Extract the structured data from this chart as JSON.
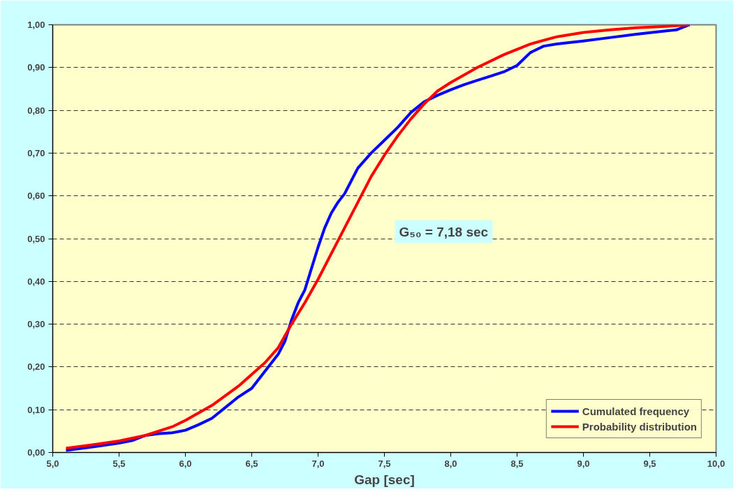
{
  "chart_data": {
    "type": "line",
    "xlabel": "Gap [sec]",
    "annotations": [
      "G₅₀ = 7,18 sec"
    ],
    "xlim": [
      5.0,
      10.0
    ],
    "ylim": [
      0.0,
      1.0
    ],
    "xticks": [
      {
        "value": 5.0,
        "label": "5,0"
      },
      {
        "value": 5.5,
        "label": "5,5"
      },
      {
        "value": 6.0,
        "label": "6,0"
      },
      {
        "value": 6.5,
        "label": "6,5"
      },
      {
        "value": 7.0,
        "label": "7,0"
      },
      {
        "value": 7.5,
        "label": "7,5"
      },
      {
        "value": 8.0,
        "label": "8,0"
      },
      {
        "value": 8.5,
        "label": "8,5"
      },
      {
        "value": 9.0,
        "label": "9,0"
      },
      {
        "value": 9.5,
        "label": "9,5"
      },
      {
        "value": 10.0,
        "label": "10,0"
      }
    ],
    "yticks": [
      {
        "value": 0.0,
        "label": "0,00"
      },
      {
        "value": 0.1,
        "label": "0,10"
      },
      {
        "value": 0.2,
        "label": "0,20"
      },
      {
        "value": 0.3,
        "label": "0,30"
      },
      {
        "value": 0.4,
        "label": "0,40"
      },
      {
        "value": 0.5,
        "label": "0,50"
      },
      {
        "value": 0.6,
        "label": "0,60"
      },
      {
        "value": 0.7,
        "label": "0,70"
      },
      {
        "value": 0.8,
        "label": "0,80"
      },
      {
        "value": 0.9,
        "label": "0,90"
      },
      {
        "value": 1.0,
        "label": "1,00"
      }
    ],
    "grid": "y",
    "legend": "bottom right",
    "marker": "none",
    "line_style": "solid",
    "series": [
      {
        "name": "Cumulated frequency",
        "color": "#0000ff",
        "x": [
          5.1,
          5.3,
          5.5,
          5.6,
          5.7,
          5.8,
          5.9,
          6.0,
          6.1,
          6.2,
          6.3,
          6.4,
          6.5,
          6.6,
          6.7,
          6.75,
          6.8,
          6.85,
          6.9,
          6.95,
          7.0,
          7.05,
          7.1,
          7.15,
          7.2,
          7.25,
          7.3,
          7.4,
          7.5,
          7.6,
          7.7,
          7.8,
          7.9,
          8.0,
          8.1,
          8.2,
          8.3,
          8.4,
          8.5,
          8.6,
          8.7,
          8.8,
          9.0,
          9.2,
          9.4,
          9.6,
          9.7,
          9.8
        ],
        "values": [
          0.005,
          0.013,
          0.022,
          0.028,
          0.04,
          0.044,
          0.046,
          0.052,
          0.065,
          0.08,
          0.105,
          0.13,
          0.15,
          0.19,
          0.23,
          0.26,
          0.31,
          0.35,
          0.38,
          0.43,
          0.48,
          0.525,
          0.56,
          0.585,
          0.605,
          0.635,
          0.665,
          0.7,
          0.73,
          0.76,
          0.795,
          0.82,
          0.835,
          0.848,
          0.86,
          0.87,
          0.88,
          0.89,
          0.905,
          0.935,
          0.95,
          0.955,
          0.962,
          0.97,
          0.978,
          0.985,
          0.988,
          1.0
        ]
      },
      {
        "name": "Probability distribution",
        "color": "#ff0000",
        "x": [
          5.1,
          5.3,
          5.5,
          5.7,
          5.9,
          6.0,
          6.2,
          6.4,
          6.6,
          6.7,
          6.8,
          6.9,
          7.0,
          7.1,
          7.2,
          7.3,
          7.4,
          7.5,
          7.6,
          7.7,
          7.8,
          7.9,
          8.0,
          8.2,
          8.4,
          8.6,
          8.8,
          9.0,
          9.2,
          9.4,
          9.6,
          9.8
        ],
        "values": [
          0.01,
          0.018,
          0.027,
          0.04,
          0.06,
          0.075,
          0.11,
          0.155,
          0.21,
          0.245,
          0.3,
          0.35,
          0.405,
          0.465,
          0.525,
          0.585,
          0.645,
          0.695,
          0.74,
          0.78,
          0.815,
          0.845,
          0.865,
          0.9,
          0.93,
          0.955,
          0.972,
          0.982,
          0.988,
          0.993,
          0.996,
          1.0
        ]
      }
    ]
  }
}
